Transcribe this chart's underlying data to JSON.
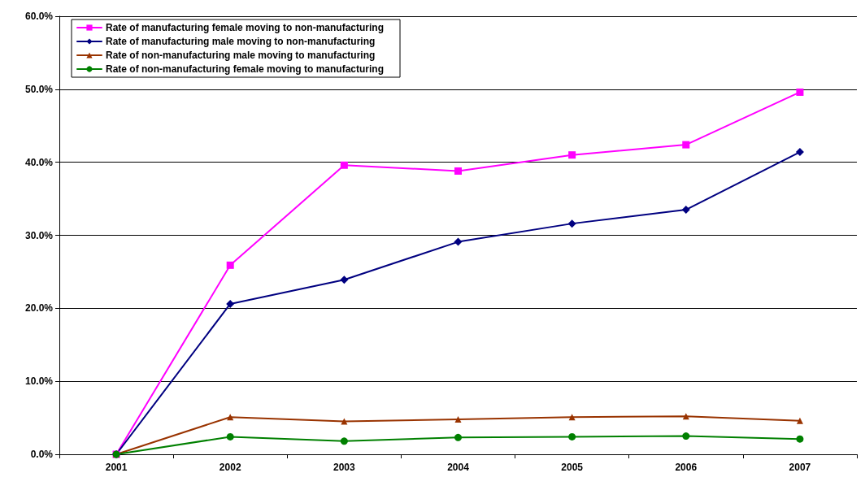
{
  "chart_data": {
    "type": "line",
    "categories": [
      "2001",
      "2002",
      "2003",
      "2004",
      "2005",
      "2006",
      "2007"
    ],
    "series": [
      {
        "name": "Rate of manufacturing female moving to non-manufacturing",
        "color": "#ff00ff",
        "marker": "square",
        "values": [
          0,
          25.9,
          39.6,
          38.8,
          41.0,
          42.4,
          49.6
        ]
      },
      {
        "name": "Rate of manufacturing male moving to non-manufacturing",
        "color": "#000080",
        "marker": "diamond",
        "values": [
          0,
          20.6,
          23.9,
          29.1,
          31.6,
          33.5,
          41.4
        ]
      },
      {
        "name": "Rate of non-manufacturing male moving to manufacturing",
        "color": "#993300",
        "marker": "triangle",
        "values": [
          0,
          5.1,
          4.5,
          4.8,
          5.1,
          5.2,
          4.6
        ]
      },
      {
        "name": "Rate of non-manufacturing female moving to manufacturing",
        "color": "#008000",
        "marker": "circle",
        "values": [
          0,
          2.4,
          1.8,
          2.3,
          2.4,
          2.5,
          2.1
        ]
      }
    ],
    "ylim": [
      0,
      60
    ],
    "yticks": [
      {
        "value": 0,
        "label": "0.0%"
      },
      {
        "value": 10,
        "label": "10.0%"
      },
      {
        "value": 20,
        "label": "20.0%"
      },
      {
        "value": 30,
        "label": "30.0%"
      },
      {
        "value": 40,
        "label": "40.0%"
      },
      {
        "value": 50,
        "label": "50.0%"
      },
      {
        "value": 60,
        "label": "60.0%"
      }
    ],
    "grid": "y",
    "legend": "top left",
    "line_style": "solid"
  }
}
